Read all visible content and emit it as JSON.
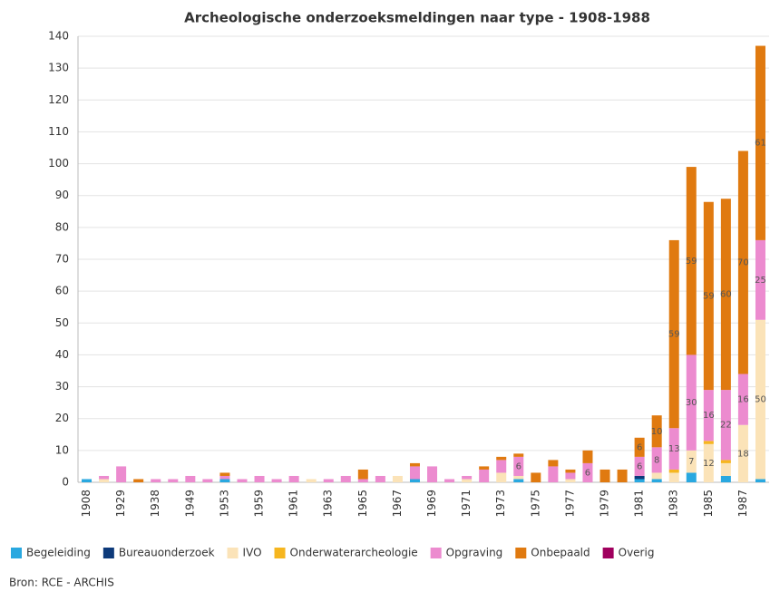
{
  "chart_data": {
    "type": "stacked_bar",
    "title": "Archeologische onderzoeksmeldingen naar type - 1908-1988",
    "source": "Bron: RCE - ARCHIS",
    "categories": [
      "1908",
      null,
      "1929",
      null,
      "1938",
      null,
      "1949",
      null,
      "1953",
      null,
      "1959",
      null,
      "1961",
      null,
      "1963",
      null,
      "1965",
      null,
      "1967",
      null,
      "1969",
      null,
      "1971",
      null,
      "1973",
      null,
      "1975",
      null,
      "1977",
      null,
      "1979",
      null,
      "1981",
      null,
      "1983",
      null,
      "1985",
      null,
      "1987",
      null
    ],
    "series": [
      {
        "name": "Begeleiding",
        "color": "#29a8e0",
        "values": [
          1,
          0,
          0,
          0,
          0,
          0,
          0,
          0,
          1,
          0,
          0,
          0,
          0,
          0,
          0,
          0,
          0,
          0,
          0,
          1,
          0,
          0,
          0,
          0,
          0,
          1,
          0,
          0,
          0,
          0,
          0,
          0,
          1,
          1,
          0,
          3,
          0,
          2,
          0,
          1
        ]
      },
      {
        "name": "Bureauonderzoek",
        "color": "#0d3a7a",
        "values": [
          0,
          0,
          0,
          0,
          0,
          0,
          0,
          0,
          0,
          0,
          0,
          0,
          0,
          0,
          0,
          0,
          0,
          0,
          0,
          0,
          0,
          0,
          0,
          0,
          0,
          0,
          0,
          0,
          0,
          0,
          0,
          0,
          1,
          0,
          0,
          0,
          0,
          0,
          0,
          0
        ]
      },
      {
        "name": "IVO",
        "color": "#fbe3b8",
        "values": [
          0,
          1,
          0,
          0,
          0,
          0,
          0,
          0,
          0,
          0,
          0,
          0,
          0,
          1,
          0,
          0,
          0,
          0,
          2,
          0,
          0,
          0,
          1,
          0,
          3,
          1,
          0,
          0,
          1,
          0,
          0,
          0,
          0,
          2,
          3,
          7,
          12,
          4,
          18,
          50
        ]
      },
      {
        "name": "Onderwaterarcheologie",
        "color": "#f6b61f",
        "values": [
          0,
          0,
          0,
          0,
          0,
          0,
          0,
          0,
          0,
          0,
          0,
          0,
          0,
          0,
          0,
          0,
          0,
          0,
          0,
          0,
          0,
          0,
          0,
          0,
          0,
          0,
          0,
          0,
          0,
          0,
          0,
          0,
          0,
          0,
          1,
          0,
          1,
          1,
          0,
          0
        ]
      },
      {
        "name": "Opgraving",
        "color": "#ec8bcf",
        "values": [
          0,
          1,
          5,
          0,
          1,
          1,
          2,
          1,
          1,
          1,
          2,
          1,
          2,
          0,
          1,
          2,
          1,
          2,
          0,
          4,
          5,
          1,
          1,
          4,
          4,
          6,
          0,
          5,
          2,
          6,
          0,
          0,
          6,
          8,
          13,
          30,
          16,
          22,
          16,
          25
        ]
      },
      {
        "name": "Onbepaald",
        "color": "#e07a10",
        "values": [
          0,
          0,
          0,
          1,
          0,
          0,
          0,
          0,
          1,
          0,
          0,
          0,
          0,
          0,
          0,
          0,
          3,
          0,
          0,
          1,
          0,
          0,
          0,
          1,
          1,
          1,
          3,
          2,
          1,
          4,
          4,
          4,
          6,
          10,
          59,
          59,
          59,
          60,
          70,
          61
        ]
      },
      {
        "name": "Overig",
        "color": "#a0005e",
        "values": [
          0,
          0,
          0,
          0,
          0,
          0,
          0,
          0,
          0,
          0,
          0,
          0,
          0,
          0,
          0,
          0,
          0,
          0,
          0,
          0,
          0,
          0,
          0,
          0,
          0,
          0,
          0,
          0,
          0,
          0,
          0,
          0,
          0,
          0,
          0,
          0,
          0,
          0,
          0,
          0
        ]
      }
    ],
    "ylim": [
      0,
      140
    ],
    "yticks": [
      0,
      10,
      20,
      30,
      40,
      50,
      60,
      70,
      80,
      90,
      100,
      110,
      120,
      130,
      140
    ],
    "grid": true
  }
}
